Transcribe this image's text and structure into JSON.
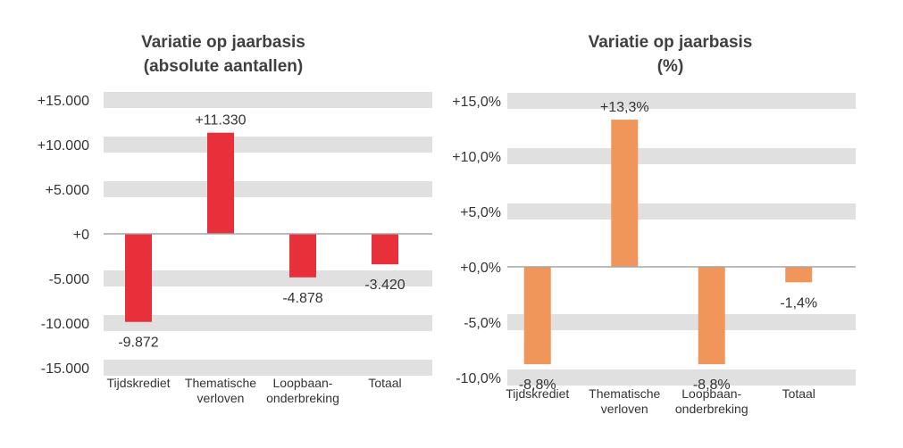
{
  "chart_data": [
    {
      "type": "bar",
      "title_line1": "Variatie op jaarbasis",
      "title_line2": "(absolute aantallen)",
      "categories": [
        [
          "Tijdskrediet"
        ],
        [
          "Thematische",
          "verloven"
        ],
        [
          "Loopbaan-",
          "onderbreking"
        ],
        [
          "Totaal"
        ]
      ],
      "values": [
        -9872,
        11330,
        -4878,
        -3420
      ],
      "value_labels": [
        "-9.872",
        "+11.330",
        "-4.878",
        "-3.420"
      ],
      "y_ticks": [
        15000,
        10000,
        5000,
        0,
        -5000,
        -10000,
        -15000
      ],
      "y_tick_labels": [
        "+15.000",
        "+10.000",
        "+5.000",
        "+0",
        "-5.000",
        "-10.000",
        "-15.000"
      ],
      "ylim": [
        -15000,
        15000
      ],
      "bar_color": "#e8303a",
      "band_color": "#e0e0e0",
      "grid": true
    },
    {
      "type": "bar",
      "title_line1": "Variatie op jaarbasis",
      "title_line2": "(%)",
      "categories": [
        [
          "Tijdskrediet"
        ],
        [
          "Thematische",
          "verloven"
        ],
        [
          "Loopbaan-",
          "onderbreking"
        ],
        [
          "Totaal"
        ]
      ],
      "values": [
        -8.8,
        13.3,
        -8.8,
        -1.4
      ],
      "value_labels": [
        "-8,8%",
        "+13,3%",
        "-8,8%",
        "-1,4%"
      ],
      "y_ticks": [
        15,
        10,
        5,
        0,
        -5,
        -10
      ],
      "y_tick_labels": [
        "+15,0%",
        "+10,0%",
        "+5,0%",
        "+0,0%",
        "-5,0%",
        "-10,0%"
      ],
      "ylim": [
        -10,
        15
      ],
      "bar_color": "#f0965a",
      "band_color": "#e0e0e0",
      "grid": true
    }
  ]
}
